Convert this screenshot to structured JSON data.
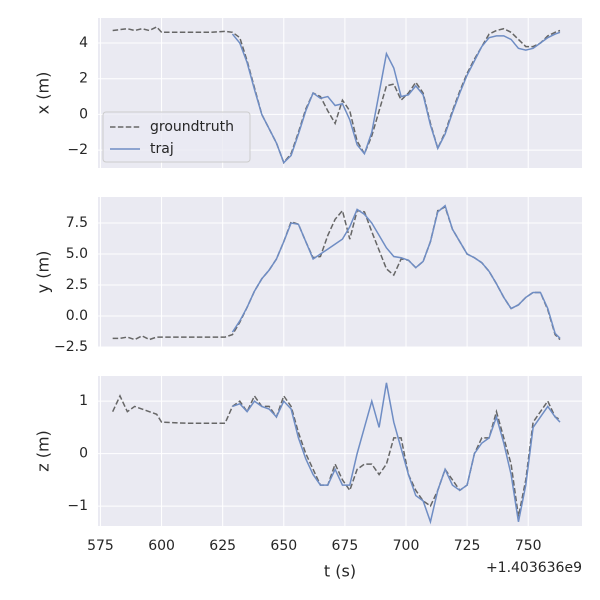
{
  "chart_data": [
    {
      "type": "line",
      "ylabel": "x (m)",
      "legend": "center left",
      "grid": true,
      "xlim": [
        574,
        772
      ],
      "xticks": [
        575,
        600,
        625,
        650,
        675,
        700,
        725,
        750
      ],
      "ylim": [
        -3.0,
        5.4
      ],
      "yticks": [
        4,
        2,
        0,
        {
          "value": -2,
          "label": "−2"
        }
      ],
      "x": [
        580,
        583,
        586,
        589,
        592,
        595,
        598,
        600,
        610,
        620,
        626,
        629,
        632,
        635,
        638,
        641,
        644,
        647,
        650,
        653,
        656,
        659,
        662,
        665,
        668,
        671,
        674,
        677,
        680,
        683,
        686,
        689,
        692,
        695,
        698,
        701,
        704,
        707,
        710,
        713,
        716,
        719,
        722,
        725,
        728,
        731,
        734,
        737,
        740,
        743,
        746,
        749,
        752,
        755,
        758,
        761,
        763
      ],
      "series": [
        {
          "name": "groundtruth",
          "color": "#666666",
          "dash": true,
          "values": [
            4.7,
            4.75,
            4.8,
            4.7,
            4.8,
            4.7,
            4.9,
            4.6,
            4.6,
            4.6,
            4.65,
            4.6,
            4.3,
            3.0,
            1.5,
            0,
            -0.8,
            -1.6,
            -2.7,
            -2.2,
            -1.0,
            0.3,
            1.2,
            1.0,
            0.2,
            -0.5,
            0.8,
            0.2,
            -1.5,
            -2.2,
            -1.2,
            0.2,
            1.6,
            1.7,
            0.8,
            1.2,
            1.8,
            1.2,
            -0.5,
            -1.9,
            -1.0,
            0.2,
            1.3,
            2.3,
            3.1,
            3.8,
            4.5,
            4.7,
            4.8,
            4.6,
            4.2,
            3.8,
            3.8,
            4.0,
            4.4,
            4.6,
            4.7
          ]
        },
        {
          "name": "traj",
          "color": "#6f8dc4",
          "dash": false,
          "values": [
            null,
            null,
            null,
            null,
            null,
            null,
            null,
            null,
            null,
            null,
            null,
            4.5,
            4.0,
            2.9,
            1.4,
            0,
            -0.8,
            -1.6,
            -2.7,
            -2.3,
            -1.1,
            0.2,
            1.2,
            0.9,
            1.0,
            0.5,
            0.6,
            -0.3,
            -1.7,
            -2.2,
            -1.0,
            1.2,
            3.4,
            2.6,
            1.0,
            1.1,
            1.6,
            1.1,
            -0.6,
            -1.9,
            -1.1,
            0.1,
            1.2,
            2.2,
            3.0,
            3.8,
            4.3,
            4.4,
            4.4,
            4.2,
            3.7,
            3.6,
            3.7,
            4.0,
            4.3,
            4.5,
            4.6
          ]
        }
      ]
    },
    {
      "type": "line",
      "ylabel": "y (m)",
      "grid": true,
      "xlim": [
        574,
        772
      ],
      "xticks": [
        575,
        600,
        625,
        650,
        675,
        700,
        725,
        750
      ],
      "ylim": [
        -2.5,
        9.6
      ],
      "yticks": [
        {
          "value": 7.5,
          "label": "7.5"
        },
        {
          "value": 5,
          "label": "5.0"
        },
        {
          "value": 2.5,
          "label": "2.5"
        },
        {
          "value": 0,
          "label": "0.0"
        },
        {
          "value": -2.5,
          "label": "−2.5"
        }
      ],
      "x": [
        580,
        583,
        586,
        589,
        592,
        595,
        598,
        600,
        610,
        620,
        626,
        629,
        632,
        635,
        638,
        641,
        644,
        647,
        650,
        653,
        656,
        659,
        662,
        665,
        668,
        671,
        674,
        677,
        680,
        683,
        686,
        689,
        692,
        695,
        698,
        701,
        704,
        707,
        710,
        713,
        716,
        719,
        722,
        725,
        728,
        731,
        734,
        737,
        740,
        743,
        746,
        749,
        752,
        755,
        758,
        761,
        763
      ],
      "series": [
        {
          "name": "groundtruth",
          "color": "#666666",
          "dash": true,
          "values": [
            -1.8,
            -1.8,
            -1.7,
            -1.9,
            -1.6,
            -1.9,
            -1.7,
            -1.7,
            -1.7,
            -1.7,
            -1.7,
            -1.5,
            -0.5,
            0.7,
            2.0,
            3.0,
            3.7,
            4.6,
            6.0,
            7.6,
            7.4,
            6.0,
            4.7,
            4.8,
            6.5,
            7.8,
            8.5,
            6.2,
            8.5,
            8.4,
            6.8,
            5.3,
            3.8,
            3.3,
            4.6,
            4.5,
            3.9,
            4.4,
            6.0,
            8.5,
            8.8,
            7.0,
            6.0,
            5.0,
            4.7,
            4.3,
            3.6,
            2.6,
            1.5,
            0.6,
            0.9,
            1.5,
            1.9,
            1.9,
            0.5,
            -1.5,
            -1.9
          ]
        },
        {
          "name": "traj",
          "color": "#6f8dc4",
          "dash": false,
          "values": [
            null,
            null,
            null,
            null,
            null,
            null,
            null,
            null,
            null,
            null,
            null,
            -1.3,
            -0.4,
            0.7,
            2.0,
            3.0,
            3.7,
            4.6,
            6.0,
            7.5,
            7.4,
            6.0,
            4.6,
            5.0,
            5.4,
            5.8,
            6.2,
            7.2,
            8.6,
            8.2,
            7.5,
            6.5,
            5.5,
            4.8,
            4.7,
            4.5,
            3.9,
            4.4,
            6.0,
            8.4,
            8.9,
            7.0,
            6.0,
            5.0,
            4.7,
            4.3,
            3.6,
            2.6,
            1.5,
            0.6,
            0.9,
            1.5,
            1.9,
            1.9,
            0.6,
            -1.4,
            -1.8
          ]
        }
      ]
    },
    {
      "type": "line",
      "ylabel": "z (m)",
      "xlabel": "t (s)",
      "offset": "+1.403636e9",
      "grid": true,
      "xlim": [
        574,
        772
      ],
      "xticks": [
        575,
        600,
        625,
        650,
        675,
        700,
        725,
        750
      ],
      "ylim": [
        -1.38,
        1.48
      ],
      "yticks": [
        1,
        0,
        {
          "value": -1,
          "label": "−1"
        }
      ],
      "x": [
        580,
        583,
        586,
        589,
        592,
        595,
        598,
        600,
        610,
        620,
        626,
        629,
        632,
        635,
        638,
        641,
        644,
        647,
        650,
        653,
        656,
        659,
        662,
        665,
        668,
        671,
        674,
        677,
        680,
        683,
        686,
        689,
        692,
        695,
        698,
        701,
        704,
        707,
        710,
        713,
        716,
        719,
        722,
        725,
        728,
        731,
        734,
        737,
        740,
        743,
        746,
        749,
        752,
        755,
        758,
        761,
        763
      ],
      "series": [
        {
          "name": "groundtruth",
          "color": "#666666",
          "dash": true,
          "values": [
            0.8,
            1.1,
            0.8,
            0.9,
            0.85,
            0.8,
            0.75,
            0.6,
            0.58,
            0.58,
            0.58,
            0.9,
            1.0,
            0.8,
            1.1,
            0.9,
            0.9,
            0.7,
            1.1,
            0.9,
            0.4,
            0.0,
            -0.3,
            -0.6,
            -0.6,
            -0.2,
            -0.5,
            -0.7,
            -0.3,
            -0.2,
            -0.2,
            -0.4,
            -0.2,
            0.3,
            0.3,
            -0.4,
            -0.7,
            -0.9,
            -1.0,
            -0.7,
            -0.3,
            -0.5,
            -0.7,
            -0.6,
            0.0,
            0.3,
            0.3,
            0.8,
            0.3,
            -0.2,
            -1.2,
            -0.5,
            0.6,
            0.8,
            1.0,
            0.7,
            0.65
          ]
        },
        {
          "name": "traj",
          "color": "#6f8dc4",
          "dash": false,
          "values": [
            null,
            null,
            null,
            null,
            null,
            null,
            null,
            null,
            null,
            null,
            null,
            0.9,
            0.95,
            0.8,
            1.0,
            0.9,
            0.85,
            0.7,
            1.0,
            0.85,
            0.3,
            -0.1,
            -0.4,
            -0.6,
            -0.6,
            -0.3,
            -0.6,
            -0.6,
            0.0,
            0.5,
            1.0,
            0.5,
            1.35,
            0.6,
            0.1,
            -0.4,
            -0.8,
            -0.9,
            -1.3,
            -0.7,
            -0.3,
            -0.6,
            -0.7,
            -0.6,
            0.0,
            0.2,
            0.3,
            0.7,
            0.2,
            -0.4,
            -1.3,
            -0.6,
            0.5,
            0.7,
            0.9,
            0.7,
            0.6
          ]
        }
      ]
    }
  ]
}
